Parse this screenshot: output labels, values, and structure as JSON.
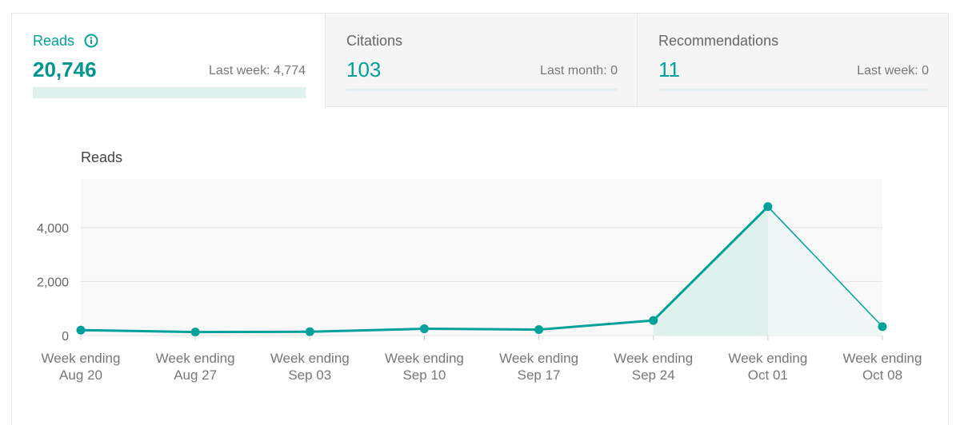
{
  "tabs": [
    {
      "title": "Reads",
      "value": "20,746",
      "sub": "Last week: 4,774",
      "active": true
    },
    {
      "title": "Citations",
      "value": "103",
      "sub": "Last month: 0",
      "active": false
    },
    {
      "title": "Recommendations",
      "value": "11",
      "sub": "Last week: 0",
      "active": false
    }
  ],
  "colors": {
    "accent": "#00a19a",
    "fill": "#dcefeb"
  },
  "chart_data": {
    "type": "area",
    "title": "Reads",
    "categories": [
      [
        "Week ending",
        "Aug 20"
      ],
      [
        "Week ending",
        "Aug 27"
      ],
      [
        "Week ending",
        "Sep 03"
      ],
      [
        "Week ending",
        "Sep 10"
      ],
      [
        "Week ending",
        "Sep 17"
      ],
      [
        "Week ending",
        "Sep 24"
      ],
      [
        "Week ending",
        "Oct 01"
      ],
      [
        "Week ending",
        "Oct 08"
      ]
    ],
    "values": [
      200,
      130,
      140,
      250,
      220,
      560,
      4774,
      330
    ],
    "yticks": [
      {
        "value": 0,
        "label": "0"
      },
      {
        "value": 2000,
        "label": "2,000"
      },
      {
        "value": 4000,
        "label": "4,000"
      }
    ],
    "ylim": [
      0,
      5800
    ],
    "grid": true,
    "highlight_last_week_index": 6
  }
}
